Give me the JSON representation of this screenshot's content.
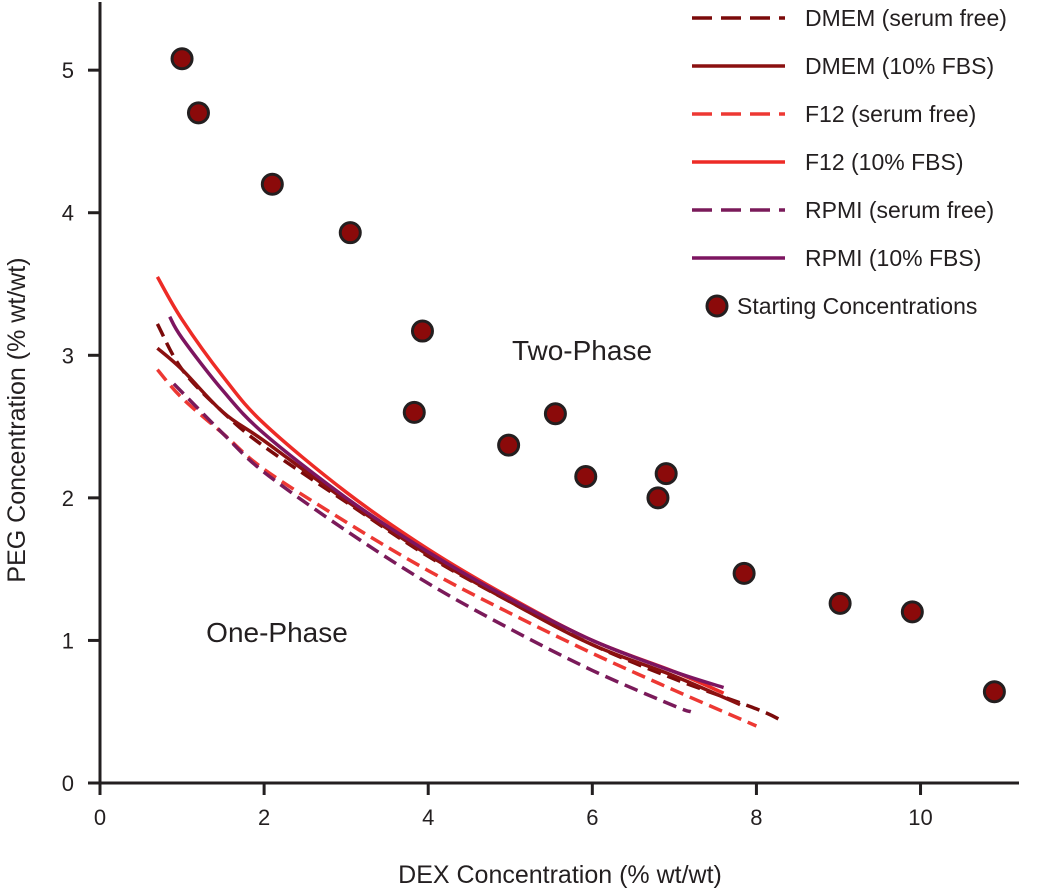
{
  "chart_data": {
    "type": "scatter",
    "xlabel": "DEX Concentration (% wt/wt)",
    "ylabel": "PEG Concentration (% wt/wt)",
    "xlim": [
      0,
      11.2
    ],
    "ylim": [
      0,
      5.45
    ],
    "x_ticks": [
      "0",
      "2",
      "4",
      "6",
      "8",
      "10"
    ],
    "x_tick_values": [
      0,
      2,
      4,
      6,
      8,
      10
    ],
    "y_ticks": [
      "0",
      "1",
      "2",
      "3",
      "4",
      "5"
    ],
    "y_tick_values": [
      0,
      1,
      2,
      3,
      4,
      5
    ],
    "annotations": [
      {
        "text": "Two-Phase",
        "x": 5.9,
        "y": 3.0
      },
      {
        "text": "One-Phase",
        "x": 2.2,
        "y": 1.05
      }
    ],
    "legend_position": "top-right",
    "series": [
      {
        "name": "DMEM (serum free)",
        "style": "dashed",
        "color": "#7b0a0a",
        "x": [
          0.7,
          1.0,
          1.5,
          2.0,
          3.0,
          4.0,
          5.0,
          6.0,
          7.0,
          8.0,
          8.3
        ],
        "y": [
          3.22,
          2.9,
          2.6,
          2.36,
          1.97,
          1.59,
          1.27,
          0.97,
          0.73,
          0.52,
          0.44
        ]
      },
      {
        "name": "DMEM (10% FBS)",
        "style": "solid",
        "color": "#8b1010",
        "x": [
          0.7,
          1.0,
          1.5,
          2.0,
          3.0,
          4.0,
          5.0,
          6.0,
          7.0,
          7.8
        ],
        "y": [
          3.05,
          2.9,
          2.6,
          2.4,
          1.98,
          1.6,
          1.27,
          0.97,
          0.75,
          0.55
        ]
      },
      {
        "name": "F12 (serum free)",
        "style": "dashed",
        "color": "#ed3833",
        "x": [
          0.7,
          1.0,
          1.5,
          2.0,
          3.0,
          4.0,
          5.0,
          6.0,
          7.0,
          8.0
        ],
        "y": [
          2.9,
          2.7,
          2.45,
          2.2,
          1.83,
          1.49,
          1.19,
          0.91,
          0.65,
          0.4
        ]
      },
      {
        "name": "F12 (10% FBS)",
        "style": "solid",
        "color": "#ed2b26",
        "x": [
          0.7,
          1.0,
          1.5,
          2.0,
          3.0,
          4.0,
          5.0,
          6.0,
          7.0,
          7.6
        ],
        "y": [
          3.55,
          3.25,
          2.85,
          2.52,
          2.04,
          1.64,
          1.3,
          1.0,
          0.78,
          0.63
        ]
      },
      {
        "name": "RPMI (serum free)",
        "style": "dashed",
        "color": "#7a1a5a",
        "x": [
          0.9,
          1.5,
          2.0,
          3.0,
          4.0,
          5.0,
          6.0,
          7.0,
          7.2
        ],
        "y": [
          2.8,
          2.45,
          2.18,
          1.77,
          1.4,
          1.08,
          0.79,
          0.54,
          0.5
        ]
      },
      {
        "name": "RPMI (10% FBS)",
        "style": "solid",
        "color": "#7d1560",
        "x": [
          0.85,
          1.0,
          1.5,
          2.0,
          3.0,
          4.0,
          5.0,
          6.0,
          7.0,
          7.6
        ],
        "y": [
          3.27,
          3.12,
          2.75,
          2.45,
          2.0,
          1.62,
          1.29,
          1.0,
          0.78,
          0.67
        ]
      },
      {
        "name": "Starting Concentrations",
        "style": "points",
        "color": "#8b0a0a",
        "x": [
          1.0,
          1.2,
          2.1,
          3.05,
          3.93,
          3.83,
          4.98,
          5.55,
          5.92,
          6.9,
          6.8,
          7.85,
          9.02,
          9.9,
          10.9
        ],
        "y": [
          5.08,
          4.7,
          4.2,
          3.86,
          3.17,
          2.6,
          2.37,
          2.59,
          2.15,
          2.17,
          2.0,
          1.47,
          1.26,
          1.2,
          0.64
        ]
      }
    ]
  }
}
